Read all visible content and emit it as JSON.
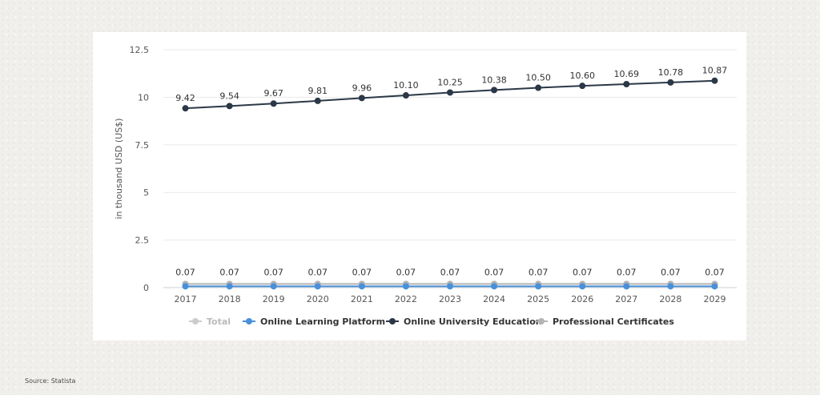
{
  "source_label": "Source: Statista",
  "chart_data": {
    "type": "line",
    "title": "",
    "xlabel": "",
    "ylabel": "in thousand USD (US$)",
    "ylim": [
      0,
      12.5
    ],
    "yticks": [
      "0",
      "2.5",
      "5",
      "7.5",
      "10",
      "12.5"
    ],
    "ytick_values": [
      0,
      2.5,
      5,
      7.5,
      10,
      12.5
    ],
    "grid": true,
    "legend_position": "bottom",
    "categories": [
      "2017",
      "2018",
      "2019",
      "2020",
      "2021",
      "2022",
      "2023",
      "2024",
      "2025",
      "2026",
      "2027",
      "2028",
      "2029"
    ],
    "series": [
      {
        "name": "Total",
        "color": "#c9c9c9",
        "visible": false,
        "values": [
          null,
          null,
          null,
          null,
          null,
          null,
          null,
          null,
          null,
          null,
          null,
          null,
          null
        ]
      },
      {
        "name": "Online Learning Platform",
        "color": "#4a90d9",
        "visible": true,
        "values": [
          0.07,
          0.07,
          0.07,
          0.07,
          0.07,
          0.07,
          0.07,
          0.07,
          0.07,
          0.07,
          0.07,
          0.07,
          0.07
        ],
        "labels": [
          "0.07",
          "0.07",
          "0.07",
          "0.07",
          "0.07",
          "0.07",
          "0.07",
          "0.07",
          "0.07",
          "0.07",
          "0.07",
          "0.07",
          "0.07"
        ]
      },
      {
        "name": "Online University Education",
        "color": "#2b3847",
        "visible": true,
        "values": [
          9.42,
          9.54,
          9.67,
          9.81,
          9.96,
          10.1,
          10.25,
          10.38,
          10.5,
          10.6,
          10.69,
          10.78,
          10.87
        ],
        "labels": [
          "9.42",
          "9.54",
          "9.67",
          "9.81",
          "9.96",
          "10.10",
          "10.25",
          "10.38",
          "10.50",
          "10.60",
          "10.69",
          "10.78",
          "10.87"
        ]
      },
      {
        "name": "Professional Certificates",
        "color": "#b4b4b4",
        "visible": true,
        "values": [
          0.07,
          0.07,
          0.07,
          0.07,
          0.07,
          0.07,
          0.07,
          0.07,
          0.07,
          0.07,
          0.07,
          0.07,
          0.07
        ]
      }
    ]
  }
}
